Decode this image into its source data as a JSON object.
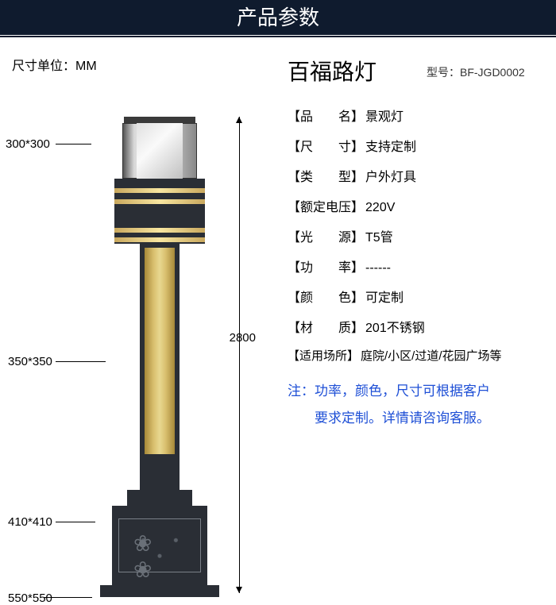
{
  "header": {
    "title": "产品参数"
  },
  "unit_label": "尺寸单位：MM",
  "dimensions": {
    "top": "300*300",
    "mid_upper": "350*350",
    "base_upper": "410*410",
    "base_lower": "550*550",
    "height": "2800"
  },
  "product": {
    "title": "百福路灯",
    "model_label": "型号：",
    "model_value": "BF-JGD0002"
  },
  "specs": [
    {
      "key": "【品　　名】",
      "value": "景观灯"
    },
    {
      "key": "【尺　　寸】",
      "value": "支持定制"
    },
    {
      "key": "【类　　型】",
      "value": "户外灯具"
    },
    {
      "key": "【额定电压】",
      "value": " 220V"
    },
    {
      "key": "【光　　源】",
      "value": "T5管"
    },
    {
      "key": "【功　　率】",
      "value": " ------"
    },
    {
      "key": "【颜　　色】",
      "value": "可定制"
    },
    {
      "key": "【材　　质】",
      "value": "201不锈钢"
    },
    {
      "key": "【适用场所】",
      "value": "庭院/小区/过道/花园广场等"
    }
  ],
  "note": {
    "line1": "注：功率，颜色，尺寸可根据客户",
    "line2": "　　要求定制。详情请咨询客服。"
  },
  "colors": {
    "header_bg": "#0f1b2e",
    "note_color": "#1e4fd6",
    "lamp_dark": "#2a2e35",
    "lamp_gold": "#d9bf6e"
  }
}
